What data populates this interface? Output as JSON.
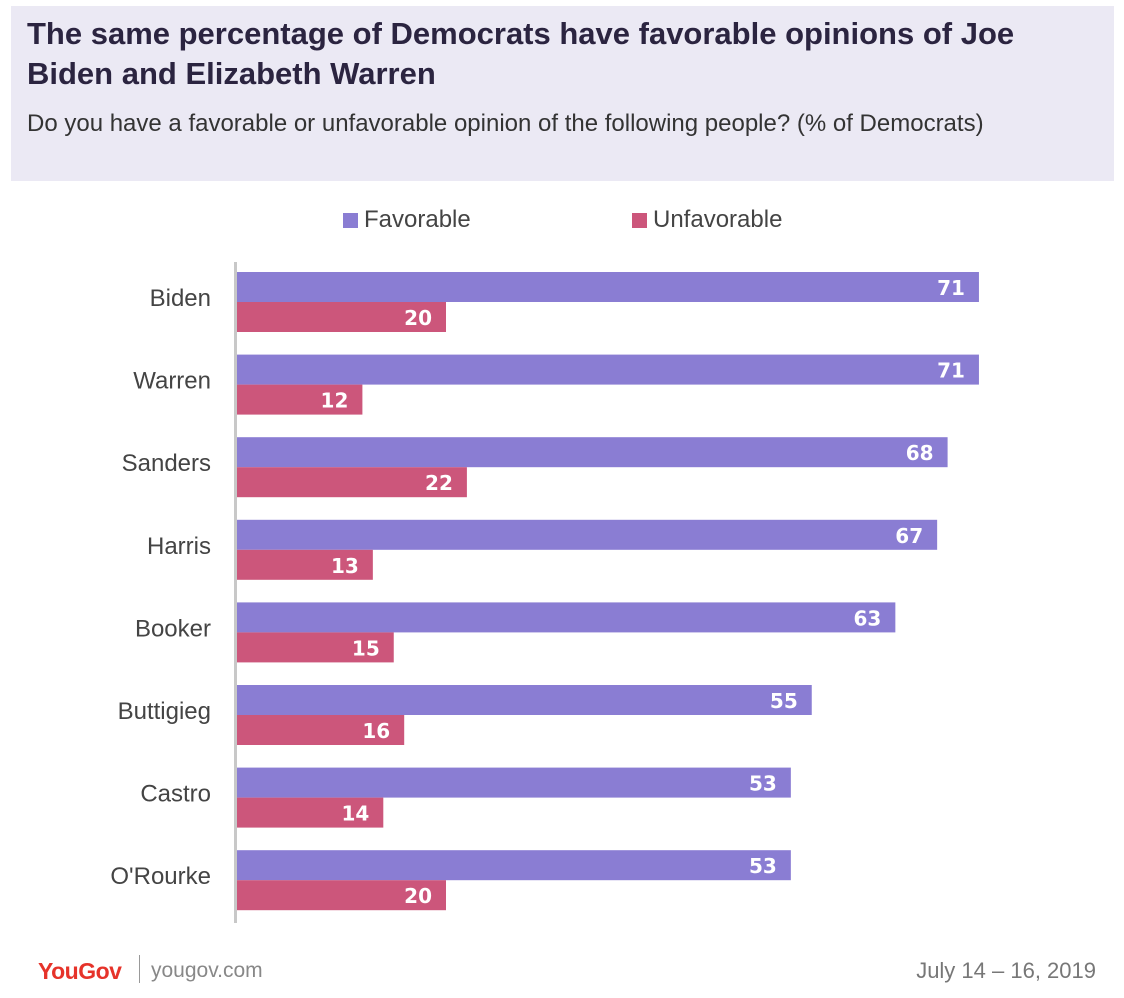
{
  "header": {
    "title": "The same percentage of Democrats have favorable opinions of Joe Biden and Elizabeth Warren",
    "subtitle": "Do you have a favorable or unfavorable opinion of the following people? (% of Democrats)"
  },
  "footer": {
    "logo": "YouGov",
    "site": "yougov.com",
    "date": "July 14 – 16, 2019"
  },
  "colors": {
    "favorable": "#8a7dd3",
    "unfavorable": "#cc567b",
    "axis": "#c8c8c8"
  },
  "chart_data": {
    "type": "bar",
    "orientation": "horizontal",
    "categories": [
      "Biden",
      "Warren",
      "Sanders",
      "Harris",
      "Booker",
      "Buttigieg",
      "Castro",
      "O'Rourke"
    ],
    "series": [
      {
        "name": "Favorable",
        "values": [
          71,
          71,
          68,
          67,
          63,
          55,
          53,
          53
        ]
      },
      {
        "name": "Unfavorable",
        "values": [
          20,
          12,
          22,
          13,
          15,
          16,
          14,
          20
        ]
      }
    ],
    "legend_position": "top",
    "grid": false,
    "xlim": [
      0,
      100
    ]
  }
}
